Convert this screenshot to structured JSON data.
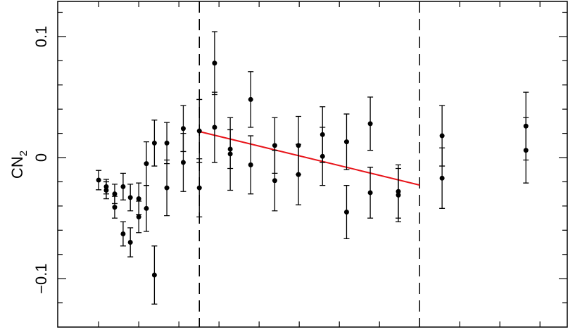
{
  "chart_data": {
    "type": "scatter",
    "y_label": {
      "text": "CN",
      "subscript": "2"
    },
    "xlim": [
      -1.02,
      11.68
    ],
    "ylim": [
      -0.14,
      0.129
    ],
    "xticks": [
      0,
      1,
      2,
      3,
      4,
      5,
      6,
      7,
      8,
      9,
      10,
      11
    ],
    "yticks": [
      {
        "value": -0.1,
        "label": "−0.1"
      },
      {
        "value": 0,
        "label": "0"
      },
      {
        "value": 0.1,
        "label": "0.1"
      }
    ],
    "yminorticks": [
      -0.12,
      -0.08,
      -0.06,
      -0.04,
      -0.02,
      0.02,
      0.04,
      0.06,
      0.08,
      0.12
    ],
    "vlines": [
      2.51,
      8.0
    ],
    "fit_line": {
      "color": "#e8141a",
      "x": [
        2.51,
        8.0
      ],
      "y": [
        0.0215,
        -0.0227
      ]
    },
    "series": [
      {
        "color": "#000000",
        "x": [
          0,
          0.19,
          0.19,
          0.4,
          0.4,
          0.61,
          0.61,
          0.79,
          0.79,
          1.0,
          1.0,
          1.19,
          1.19,
          1.39,
          1.39,
          1.7,
          1.7,
          2.11,
          2.11,
          2.51,
          2.51,
          2.89,
          2.89,
          3.28,
          3.28,
          3.79,
          3.79,
          4.39,
          4.39,
          4.98,
          4.98,
          5.58,
          5.58,
          6.18,
          6.18,
          6.77,
          6.77,
          7.47,
          7.47,
          8.56,
          8.56,
          10.65,
          10.65
        ],
        "values": [
          -0.0186,
          -0.024,
          -0.027,
          -0.03,
          -0.041,
          -0.024,
          -0.063,
          -0.033,
          -0.07,
          -0.034,
          -0.049,
          -0.005,
          -0.042,
          0.012,
          -0.097,
          0.012,
          -0.025,
          0.024,
          -0.004,
          0.022,
          -0.025,
          0.078,
          0.025,
          0.007,
          0.003,
          0.048,
          -0.006,
          0.01,
          -0.019,
          0.01,
          -0.014,
          0.019,
          0.001,
          0.013,
          -0.045,
          0.028,
          -0.029,
          -0.028,
          -0.031,
          0.018,
          -0.017,
          0.026,
          0.006
        ],
        "errors": [
          0.008,
          0.006,
          0.007,
          0.008,
          0.009,
          0.011,
          0.01,
          0.011,
          0.012,
          0.013,
          0.013,
          0.018,
          0.019,
          0.019,
          0.024,
          0.017,
          0.023,
          0.019,
          0.024,
          0.026,
          0.024,
          0.026,
          0.029,
          0.016,
          0.03,
          0.023,
          0.024,
          0.023,
          0.025,
          0.024,
          0.025,
          0.023,
          0.024,
          0.023,
          0.022,
          0.022,
          0.021,
          0.022,
          0.022,
          0.025,
          0.025,
          0.028,
          0.027
        ]
      }
    ]
  }
}
